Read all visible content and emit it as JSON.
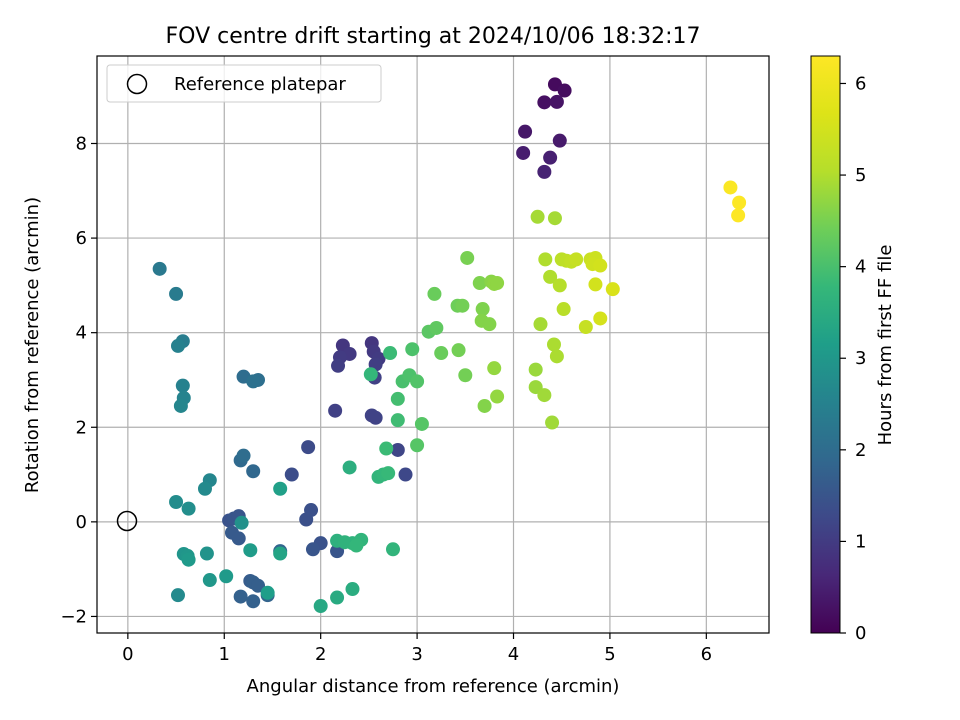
{
  "chart_data": {
    "type": "scatter",
    "title": "FOV centre drift starting at 2024/10/06 18:32:17",
    "xlabel": "Angular distance from reference (arcmin)",
    "ylabel": "Rotation from reference (arcmin)",
    "xlim": [
      -0.32,
      6.65
    ],
    "ylim": [
      -2.35,
      9.85
    ],
    "xticks": [
      "0",
      "1",
      "2",
      "3",
      "4",
      "5",
      "6"
    ],
    "xtick_values": [
      0,
      1,
      2,
      3,
      4,
      5,
      6
    ],
    "yticks": [
      "−2",
      "0",
      "2",
      "4",
      "6",
      "8"
    ],
    "ytick_values": [
      -2,
      0,
      2,
      4,
      6,
      8
    ],
    "grid": true,
    "legend": {
      "label": "Reference platepar",
      "placement": "top-left"
    },
    "reference_point": [
      0,
      0
    ],
    "colorbar": {
      "label": "Hours from first FF file",
      "min": 0,
      "max": 6.3,
      "ticks": [
        "0",
        "1",
        "2",
        "3",
        "4",
        "5",
        "6"
      ],
      "tick_values": [
        0,
        1,
        2,
        3,
        4,
        5,
        6
      ],
      "colormap": "viridis"
    },
    "points": [
      [
        4.43,
        9.25,
        0.15
      ],
      [
        4.53,
        9.12,
        0.2
      ],
      [
        4.32,
        8.87,
        0.25
      ],
      [
        4.45,
        8.88,
        0.3
      ],
      [
        4.12,
        8.25,
        0.35
      ],
      [
        4.48,
        8.06,
        0.4
      ],
      [
        4.1,
        7.8,
        0.45
      ],
      [
        4.38,
        7.7,
        0.5
      ],
      [
        4.32,
        7.4,
        0.55
      ],
      [
        6.25,
        7.07,
        6.25
      ],
      [
        6.34,
        6.75,
        6.28
      ],
      [
        6.33,
        6.48,
        6.3
      ],
      [
        2.23,
        3.73,
        0.9
      ],
      [
        2.3,
        3.55,
        0.95
      ],
      [
        2.2,
        3.48,
        1.0
      ],
      [
        2.18,
        3.3,
        1.05
      ],
      [
        2.53,
        3.78,
        0.9
      ],
      [
        2.55,
        3.6,
        0.95
      ],
      [
        2.6,
        3.45,
        1.0
      ],
      [
        2.57,
        3.33,
        1.05
      ],
      [
        2.56,
        3.05,
        1.1
      ],
      [
        2.15,
        2.35,
        1.1
      ],
      [
        2.53,
        2.25,
        1.15
      ],
      [
        2.57,
        2.2,
        1.15
      ],
      [
        2.8,
        1.52,
        1.2
      ],
      [
        2.88,
        1.0,
        1.25
      ],
      [
        1.87,
        1.58,
        1.3
      ],
      [
        1.7,
        1.0,
        1.35
      ],
      [
        1.85,
        0.05,
        1.4
      ],
      [
        1.9,
        0.25,
        1.4
      ],
      [
        2.0,
        -0.45,
        1.45
      ],
      [
        2.17,
        -0.62,
        1.5
      ],
      [
        1.92,
        -0.58,
        1.5
      ],
      [
        1.05,
        0.03,
        1.45
      ],
      [
        1.1,
        0.07,
        1.5
      ],
      [
        1.15,
        0.12,
        1.5
      ],
      [
        1.08,
        -0.23,
        1.6
      ],
      [
        1.15,
        -0.35,
        1.6
      ],
      [
        1.27,
        -1.25,
        1.65
      ],
      [
        1.3,
        -1.28,
        1.7
      ],
      [
        1.35,
        -1.35,
        1.7
      ],
      [
        1.17,
        -1.58,
        1.75
      ],
      [
        1.3,
        -1.68,
        1.75
      ],
      [
        1.45,
        -1.55,
        1.8
      ],
      [
        1.58,
        -0.62,
        1.85
      ],
      [
        1.3,
        1.07,
        1.9
      ],
      [
        1.17,
        1.3,
        1.95
      ],
      [
        1.2,
        1.4,
        2.0
      ],
      [
        1.2,
        3.07,
        2.0
      ],
      [
        1.35,
        3.0,
        2.05
      ],
      [
        1.3,
        2.97,
        2.1
      ],
      [
        0.33,
        5.35,
        2.3
      ],
      [
        0.5,
        4.82,
        2.35
      ],
      [
        0.57,
        3.82,
        2.4
      ],
      [
        0.52,
        3.72,
        2.5
      ],
      [
        0.57,
        2.88,
        2.5
      ],
      [
        0.58,
        2.62,
        2.55
      ],
      [
        0.55,
        2.45,
        2.6
      ],
      [
        0.85,
        0.88,
        2.6
      ],
      [
        0.8,
        0.7,
        2.7
      ],
      [
        0.5,
        0.42,
        2.75
      ],
      [
        0.63,
        0.28,
        2.8
      ],
      [
        1.18,
        -0.02,
        2.85
      ],
      [
        0.82,
        -0.67,
        2.9
      ],
      [
        0.58,
        -0.68,
        2.95
      ],
      [
        0.62,
        -0.72,
        3.0
      ],
      [
        0.63,
        -0.8,
        3.05
      ],
      [
        0.52,
        -1.55,
        2.7
      ],
      [
        0.85,
        -1.23,
        3.0
      ],
      [
        1.02,
        -1.15,
        3.05
      ],
      [
        1.27,
        -0.6,
        3.1
      ],
      [
        1.45,
        -1.5,
        3.15
      ],
      [
        1.58,
        0.7,
        3.2
      ],
      [
        1.58,
        -0.67,
        3.3
      ],
      [
        2.0,
        -1.78,
        3.4
      ],
      [
        2.17,
        -1.6,
        3.45
      ],
      [
        2.33,
        -1.42,
        3.5
      ],
      [
        2.3,
        1.15,
        3.55
      ],
      [
        2.17,
        -0.4,
        3.6
      ],
      [
        2.25,
        -0.43,
        3.65
      ],
      [
        2.33,
        -0.45,
        3.65
      ],
      [
        2.42,
        -0.38,
        3.7
      ],
      [
        2.37,
        -0.5,
        3.75
      ],
      [
        2.75,
        -0.58,
        3.7
      ],
      [
        2.6,
        0.95,
        3.7
      ],
      [
        2.65,
        1.0,
        3.75
      ],
      [
        2.7,
        1.03,
        3.8
      ],
      [
        2.52,
        3.12,
        3.75
      ],
      [
        2.72,
        3.57,
        3.85
      ],
      [
        2.68,
        1.55,
        3.85
      ],
      [
        2.8,
        2.15,
        3.9
      ],
      [
        2.8,
        2.6,
        3.95
      ],
      [
        2.85,
        2.97,
        4.0
      ],
      [
        2.95,
        3.65,
        4.05
      ],
      [
        2.92,
        3.1,
        4.05
      ],
      [
        3.0,
        2.97,
        4.1
      ],
      [
        3.0,
        1.62,
        4.15
      ],
      [
        3.05,
        2.07,
        4.15
      ],
      [
        3.12,
        4.02,
        4.2
      ],
      [
        3.2,
        4.1,
        4.25
      ],
      [
        3.18,
        4.82,
        4.35
      ],
      [
        3.25,
        3.57,
        4.35
      ],
      [
        3.42,
        4.57,
        4.4
      ],
      [
        3.47,
        4.57,
        4.45
      ],
      [
        3.43,
        3.63,
        4.45
      ],
      [
        3.5,
        3.1,
        4.45
      ],
      [
        3.52,
        5.58,
        4.5
      ],
      [
        3.65,
        5.05,
        4.55
      ],
      [
        3.68,
        4.5,
        4.55
      ],
      [
        3.67,
        4.25,
        4.6
      ],
      [
        3.75,
        4.18,
        4.6
      ],
      [
        3.7,
        2.45,
        4.6
      ],
      [
        3.77,
        5.08,
        4.65
      ],
      [
        3.8,
        5.03,
        4.7
      ],
      [
        3.83,
        5.05,
        4.7
      ],
      [
        3.8,
        3.25,
        4.75
      ],
      [
        3.83,
        2.65,
        4.75
      ],
      [
        4.23,
        3.22,
        4.8
      ],
      [
        4.23,
        2.85,
        4.8
      ],
      [
        4.32,
        2.68,
        4.85
      ],
      [
        4.4,
        2.1,
        4.85
      ],
      [
        4.25,
        6.45,
        4.9
      ],
      [
        4.43,
        6.42,
        4.9
      ],
      [
        4.28,
        4.18,
        4.9
      ],
      [
        4.42,
        3.75,
        4.95
      ],
      [
        4.45,
        3.5,
        4.95
      ],
      [
        4.33,
        5.55,
        5.0
      ],
      [
        4.38,
        5.18,
        5.0
      ],
      [
        4.48,
        5.0,
        5.05
      ],
      [
        4.52,
        4.5,
        5.1
      ],
      [
        4.5,
        5.55,
        5.15
      ],
      [
        4.55,
        5.52,
        5.2
      ],
      [
        4.6,
        5.5,
        5.25
      ],
      [
        4.65,
        5.55,
        5.3
      ],
      [
        4.75,
        4.12,
        5.3
      ],
      [
        4.8,
        5.55,
        5.35
      ],
      [
        4.85,
        5.58,
        5.4
      ],
      [
        4.82,
        5.45,
        5.45
      ],
      [
        4.9,
        5.42,
        5.5
      ],
      [
        4.85,
        5.02,
        5.5
      ],
      [
        4.9,
        4.3,
        5.55
      ],
      [
        5.03,
        4.92,
        5.6
      ]
    ]
  }
}
